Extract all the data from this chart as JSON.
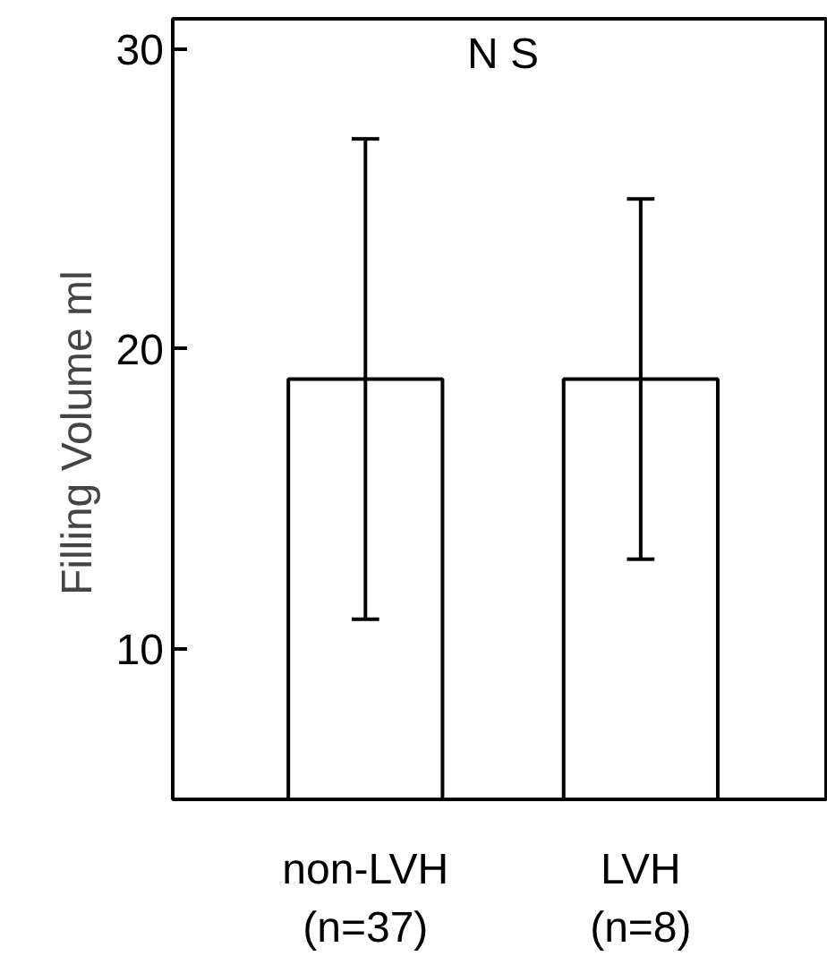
{
  "chart_data": {
    "type": "bar",
    "categories": [
      "non-LVH\n(n=37)",
      "LVH\n(n=8)"
    ],
    "values": [
      19,
      19
    ],
    "errors": [
      8,
      6
    ],
    "color": "#ffffff",
    "ylabel": "Filling  Volume    ml",
    "ylim": [
      5,
      31
    ],
    "yticks": [
      10,
      20,
      30
    ],
    "annotations": [
      "N S"
    ],
    "grid": false
  }
}
